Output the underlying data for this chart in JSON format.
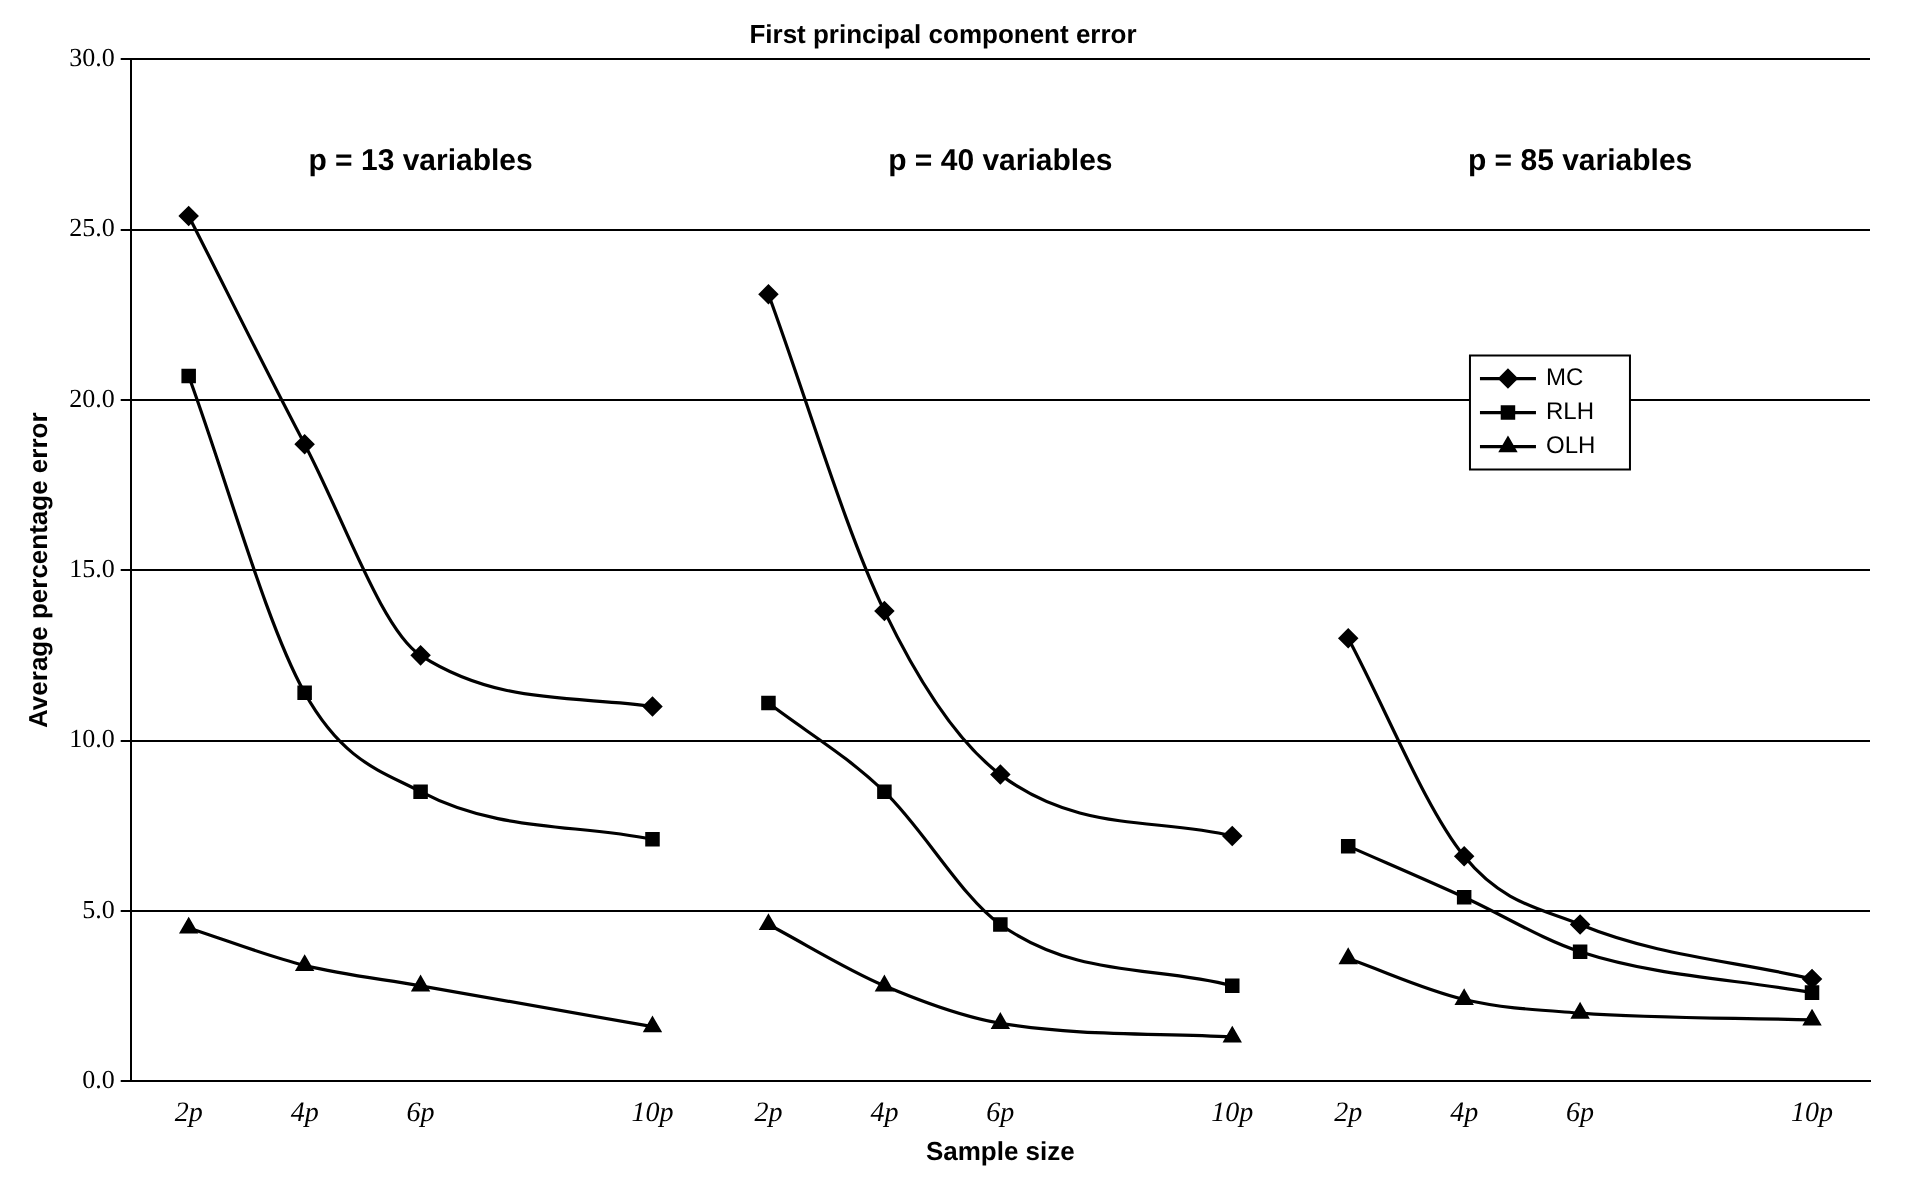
{
  "chart_data": {
    "type": "line",
    "title": "First principal component error",
    "xlabel": "Sample size",
    "ylabel": "Average percentage error",
    "annotations": [
      "p = 13 variables",
      "p = 40 variables",
      "p = 85 variables"
    ],
    "categories": [
      "2p",
      "4p",
      "6p",
      null,
      "10p",
      "2p",
      "4p",
      "6p",
      null,
      "10p",
      "2p",
      "4p",
      "6p",
      null,
      "10p"
    ],
    "series": [
      {
        "name": "MC",
        "color": "#000000",
        "marker": "diamond",
        "values": [
          25.4,
          18.7,
          12.5,
          null,
          11.0,
          null,
          null,
          null,
          null,
          null,
          null,
          null,
          null,
          null,
          null
        ]
      },
      {
        "name": "RLH",
        "color": "#000000",
        "marker": "square",
        "values": [
          20.7,
          11.4,
          8.5,
          null,
          7.1,
          null,
          null,
          null,
          null,
          null,
          null,
          null,
          null,
          null,
          null
        ]
      },
      {
        "name": "OLH",
        "color": "#000000",
        "marker": "triangle",
        "values": [
          4.5,
          3.4,
          2.8,
          null,
          1.6,
          null,
          null,
          null,
          null,
          null,
          null,
          null,
          null,
          null,
          null
        ]
      },
      {
        "color": "#000000",
        "marker": "diamond",
        "values": [
          null,
          null,
          null,
          null,
          null,
          23.1,
          13.8,
          9.0,
          null,
          7.2,
          null,
          null,
          null,
          null,
          null
        ]
      },
      {
        "color": "#000000",
        "marker": "square",
        "values": [
          null,
          null,
          null,
          null,
          null,
          11.1,
          8.5,
          4.6,
          null,
          2.8,
          null,
          null,
          null,
          null,
          null
        ]
      },
      {
        "color": "#000000",
        "marker": "triangle",
        "values": [
          null,
          null,
          null,
          null,
          null,
          4.6,
          2.8,
          1.7,
          null,
          1.3,
          null,
          null,
          null,
          null,
          null
        ]
      },
      {
        "color": "#000000",
        "marker": "diamond",
        "values": [
          null,
          null,
          null,
          null,
          null,
          null,
          null,
          null,
          null,
          null,
          13.0,
          6.6,
          4.6,
          null,
          3.0
        ]
      },
      {
        "color": "#000000",
        "marker": "square",
        "values": [
          null,
          null,
          null,
          null,
          null,
          null,
          null,
          null,
          null,
          null,
          6.9,
          5.4,
          3.8,
          null,
          2.6
        ]
      },
      {
        "color": "#000000",
        "marker": "triangle",
        "values": [
          null,
          null,
          null,
          null,
          null,
          null,
          null,
          null,
          null,
          null,
          3.6,
          2.4,
          2.0,
          null,
          1.8
        ]
      }
    ],
    "ylim": [
      0,
      30
    ],
    "yticks": [
      {
        "value": 0,
        "label": "0.0"
      },
      {
        "value": 5,
        "label": "5.0"
      },
      {
        "value": 10,
        "label": "10.0"
      },
      {
        "value": 15,
        "label": "15.0"
      },
      {
        "value": 20,
        "label": "20.0"
      },
      {
        "value": 25,
        "label": "25.0"
      },
      {
        "value": 30,
        "label": "30.0"
      }
    ],
    "grid": "y",
    "legend": "right",
    "line_style": "solid"
  }
}
